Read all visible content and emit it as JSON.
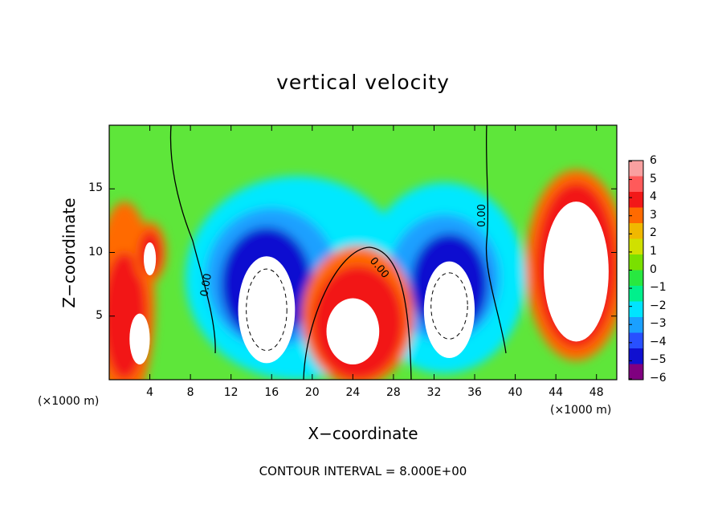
{
  "chart_data": {
    "type": "heatmap",
    "title": "vertical velocity",
    "xlabel": "X−coordinate",
    "ylabel": "Z−coordinate",
    "x_unit_left": "(×1000 m)",
    "x_unit_right": "(×1000 m)",
    "contour_interval_text": "CONTOUR INTERVAL = 8.000E+00",
    "contour_label": "0.00",
    "xlim": [
      0,
      50
    ],
    "ylim": [
      0,
      20
    ],
    "x_ticks": [
      4,
      8,
      12,
      16,
      20,
      24,
      28,
      32,
      36,
      40,
      44,
      48
    ],
    "y_ticks": [
      5,
      10,
      15
    ],
    "colorbar": {
      "levels": [
        6,
        5,
        4,
        3,
        2,
        1,
        0,
        -1,
        -2,
        -3,
        -4,
        -5,
        -6
      ],
      "labels": [
        "6",
        "5",
        "4",
        "3",
        "2",
        "1",
        "0",
        "−1",
        "−2",
        "−3",
        "−4",
        "−5",
        "−6"
      ],
      "colors": [
        "#f9a0a0",
        "#ff5a5a",
        "#f21818",
        "#ff6a00",
        "#f0b800",
        "#d0e000",
        "#7ae000",
        "#28e840",
        "#00f08c",
        "#00e4ff",
        "#1aa0ff",
        "#2850ff",
        "#1010d0",
        "#800080"
      ]
    },
    "updrafts": [
      {
        "x": 3,
        "z": 4
      },
      {
        "x": 24,
        "z": 4
      },
      {
        "x": 46,
        "z": 8
      }
    ],
    "downdrafts": [
      {
        "x": 15,
        "z": 6
      },
      {
        "x": 33,
        "z": 6
      }
    ]
  }
}
